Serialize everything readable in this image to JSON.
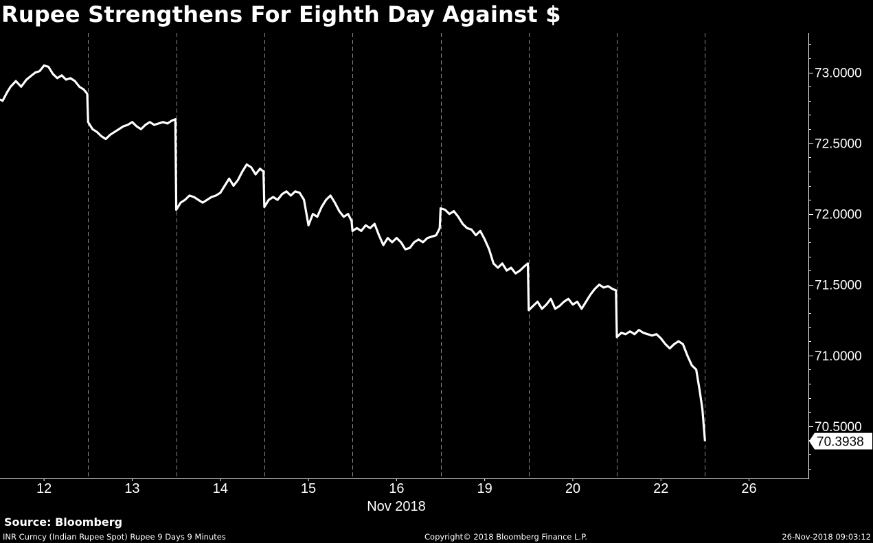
{
  "chart_data": {
    "type": "line",
    "title": "Rupee Strengthens For Eighth Day Against $",
    "xlabel": "Nov 2018",
    "ylabel": "",
    "x_tick_labels": [
      "12",
      "13",
      "14",
      "15",
      "16",
      "19",
      "20",
      "22",
      "26"
    ],
    "y_tick_labels": [
      "73.0000",
      "72.5000",
      "72.0000",
      "71.5000",
      "71.0000",
      "70.5000"
    ],
    "ylim": [
      70.13,
      73.28
    ],
    "grid": "vertical dashed session separators",
    "last_value_label": "70.3938",
    "series": [
      {
        "color": "#ffffff",
        "points": [
          [
            0.0,
            72.81
          ],
          [
            0.03,
            72.8
          ],
          [
            0.08,
            72.86
          ],
          [
            0.12,
            72.9
          ],
          [
            0.18,
            72.94
          ],
          [
            0.24,
            72.9
          ],
          [
            0.3,
            72.95
          ],
          [
            0.36,
            72.98
          ],
          [
            0.4,
            73.0
          ],
          [
            0.45,
            73.01
          ],
          [
            0.5,
            73.05
          ],
          [
            0.55,
            73.04
          ],
          [
            0.6,
            72.99
          ],
          [
            0.65,
            72.96
          ],
          [
            0.7,
            72.98
          ],
          [
            0.75,
            72.95
          ],
          [
            0.8,
            72.96
          ],
          [
            0.85,
            72.94
          ],
          [
            0.9,
            72.9
          ],
          [
            0.95,
            72.88
          ],
          [
            0.99,
            72.85
          ],
          [
            1.0,
            72.65
          ],
          [
            1.05,
            72.6
          ],
          [
            1.1,
            72.58
          ],
          [
            1.15,
            72.55
          ],
          [
            1.2,
            72.53
          ],
          [
            1.25,
            72.56
          ],
          [
            1.3,
            72.58
          ],
          [
            1.35,
            72.6
          ],
          [
            1.4,
            72.62
          ],
          [
            1.45,
            72.63
          ],
          [
            1.5,
            72.65
          ],
          [
            1.55,
            72.62
          ],
          [
            1.6,
            72.6
          ],
          [
            1.65,
            72.63
          ],
          [
            1.7,
            72.65
          ],
          [
            1.75,
            72.63
          ],
          [
            1.8,
            72.64
          ],
          [
            1.85,
            72.65
          ],
          [
            1.9,
            72.64
          ],
          [
            1.95,
            72.66
          ],
          [
            1.99,
            72.67
          ],
          [
            2.0,
            72.03
          ],
          [
            2.05,
            72.08
          ],
          [
            2.1,
            72.1
          ],
          [
            2.15,
            72.13
          ],
          [
            2.2,
            72.12
          ],
          [
            2.25,
            72.1
          ],
          [
            2.3,
            72.08
          ],
          [
            2.35,
            72.1
          ],
          [
            2.4,
            72.12
          ],
          [
            2.45,
            72.13
          ],
          [
            2.5,
            72.15
          ],
          [
            2.55,
            72.2
          ],
          [
            2.6,
            72.25
          ],
          [
            2.65,
            72.2
          ],
          [
            2.7,
            72.24
          ],
          [
            2.75,
            72.3
          ],
          [
            2.8,
            72.35
          ],
          [
            2.85,
            72.33
          ],
          [
            2.9,
            72.28
          ],
          [
            2.95,
            72.32
          ],
          [
            2.99,
            72.3
          ],
          [
            3.0,
            72.05
          ],
          [
            3.05,
            72.1
          ],
          [
            3.1,
            72.12
          ],
          [
            3.15,
            72.1
          ],
          [
            3.2,
            72.14
          ],
          [
            3.25,
            72.16
          ],
          [
            3.3,
            72.13
          ],
          [
            3.35,
            72.16
          ],
          [
            3.4,
            72.15
          ],
          [
            3.45,
            72.1
          ],
          [
            3.5,
            71.92
          ],
          [
            3.55,
            72.0
          ],
          [
            3.6,
            71.98
          ],
          [
            3.65,
            72.05
          ],
          [
            3.7,
            72.1
          ],
          [
            3.75,
            72.13
          ],
          [
            3.8,
            72.08
          ],
          [
            3.85,
            72.02
          ],
          [
            3.9,
            71.98
          ],
          [
            3.95,
            72.0
          ],
          [
            3.99,
            71.95
          ],
          [
            4.0,
            71.88
          ],
          [
            4.05,
            71.9
          ],
          [
            4.1,
            71.88
          ],
          [
            4.15,
            71.92
          ],
          [
            4.2,
            71.9
          ],
          [
            4.25,
            71.93
          ],
          [
            4.3,
            71.85
          ],
          [
            4.35,
            71.78
          ],
          [
            4.4,
            71.83
          ],
          [
            4.45,
            71.8
          ],
          [
            4.5,
            71.83
          ],
          [
            4.55,
            71.8
          ],
          [
            4.6,
            71.75
          ],
          [
            4.65,
            71.76
          ],
          [
            4.7,
            71.8
          ],
          [
            4.75,
            71.82
          ],
          [
            4.8,
            71.8
          ],
          [
            4.85,
            71.83
          ],
          [
            4.9,
            71.84
          ],
          [
            4.95,
            71.85
          ],
          [
            4.99,
            71.9
          ],
          [
            5.0,
            72.04
          ],
          [
            5.05,
            72.03
          ],
          [
            5.1,
            72.0
          ],
          [
            5.15,
            72.02
          ],
          [
            5.2,
            71.98
          ],
          [
            5.25,
            71.93
          ],
          [
            5.3,
            71.9
          ],
          [
            5.35,
            71.89
          ],
          [
            5.4,
            71.85
          ],
          [
            5.45,
            71.88
          ],
          [
            5.5,
            71.82
          ],
          [
            5.55,
            71.75
          ],
          [
            5.6,
            71.65
          ],
          [
            5.65,
            71.62
          ],
          [
            5.7,
            71.65
          ],
          [
            5.75,
            71.6
          ],
          [
            5.8,
            71.62
          ],
          [
            5.85,
            71.58
          ],
          [
            5.9,
            71.6
          ],
          [
            5.95,
            71.63
          ],
          [
            5.99,
            71.65
          ],
          [
            6.0,
            71.32
          ],
          [
            6.05,
            71.35
          ],
          [
            6.1,
            71.38
          ],
          [
            6.15,
            71.33
          ],
          [
            6.2,
            71.36
          ],
          [
            6.25,
            71.4
          ],
          [
            6.3,
            71.33
          ],
          [
            6.35,
            71.35
          ],
          [
            6.4,
            71.38
          ],
          [
            6.45,
            71.4
          ],
          [
            6.5,
            71.36
          ],
          [
            6.55,
            71.38
          ],
          [
            6.6,
            71.33
          ],
          [
            6.65,
            71.38
          ],
          [
            6.7,
            71.43
          ],
          [
            6.75,
            71.47
          ],
          [
            6.8,
            71.5
          ],
          [
            6.85,
            71.48
          ],
          [
            6.9,
            71.49
          ],
          [
            6.95,
            71.47
          ],
          [
            6.99,
            71.46
          ],
          [
            7.0,
            71.13
          ],
          [
            7.05,
            71.16
          ],
          [
            7.1,
            71.15
          ],
          [
            7.15,
            71.17
          ],
          [
            7.2,
            71.15
          ],
          [
            7.25,
            71.18
          ],
          [
            7.3,
            71.16
          ],
          [
            7.35,
            71.15
          ],
          [
            7.4,
            71.14
          ],
          [
            7.45,
            71.15
          ],
          [
            7.5,
            71.12
          ],
          [
            7.55,
            71.08
          ],
          [
            7.6,
            71.05
          ],
          [
            7.65,
            71.08
          ],
          [
            7.7,
            71.1
          ],
          [
            7.75,
            71.08
          ],
          [
            7.8,
            71.0
          ],
          [
            7.85,
            70.93
          ],
          [
            7.9,
            70.9
          ],
          [
            7.94,
            70.75
          ],
          [
            7.97,
            70.62
          ],
          [
            8.0,
            70.3938
          ]
        ]
      }
    ]
  },
  "footer": {
    "source": "Source: Bloomberg",
    "left": "INR Curncy (Indian Rupee Spot) Rupee 9 Days 9 Minutes",
    "center": "Copyright© 2018 Bloomberg Finance L.P.",
    "right": "26-Nov-2018 09:03:12"
  }
}
